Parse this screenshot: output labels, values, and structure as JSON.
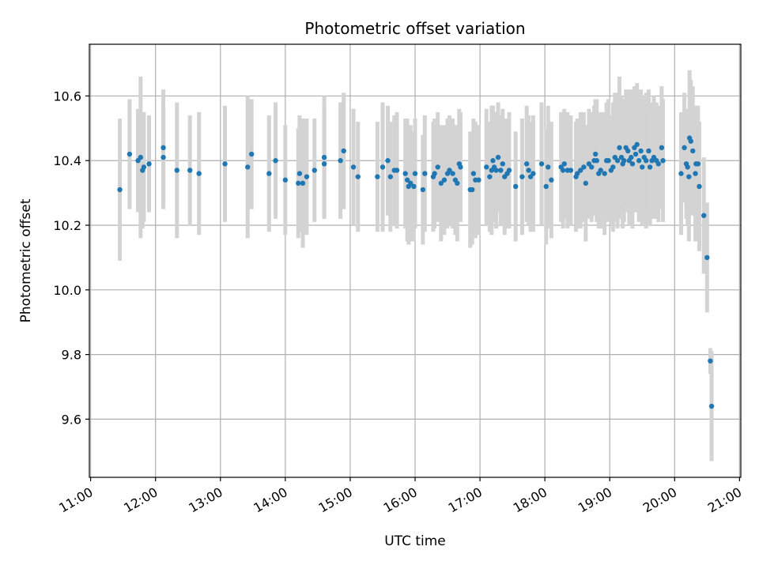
{
  "chart_data": {
    "type": "scatter",
    "title": "Photometric offset variation",
    "xlabel": "UTC time",
    "ylabel": "Photometric offset",
    "grid": true,
    "xlim": [
      10.98,
      21.02
    ],
    "ylim": [
      9.42,
      10.76
    ],
    "x_ticks": [
      "11:00",
      "12:00",
      "13:00",
      "14:00",
      "15:00",
      "16:00",
      "17:00",
      "18:00",
      "19:00",
      "20:00",
      "21:00"
    ],
    "y_ticks": [
      "9.6",
      "9.8",
      "10.0",
      "10.2",
      "10.4",
      "10.6"
    ],
    "colors": {
      "point": "#1f77b4",
      "errorbar": "#d3d3d3",
      "grid": "#b0b0b0"
    },
    "series": [
      {
        "values": [
          [
            11.45,
            10.31,
            0.22
          ],
          [
            11.6,
            10.42,
            0.17
          ],
          [
            11.73,
            10.4,
            0.16
          ],
          [
            11.77,
            10.41,
            0.25
          ],
          [
            11.8,
            10.37,
            0.18
          ],
          [
            11.82,
            10.38,
            0.17
          ],
          [
            11.9,
            10.39,
            0.15
          ],
          [
            12.12,
            10.41,
            0.16
          ],
          [
            12.12,
            10.44,
            0.18
          ],
          [
            12.33,
            10.37,
            0.21
          ],
          [
            12.53,
            10.37,
            0.17
          ],
          [
            12.67,
            10.36,
            0.19
          ],
          [
            13.07,
            10.39,
            0.18
          ],
          [
            13.42,
            10.38,
            0.22
          ],
          [
            13.48,
            10.42,
            0.17
          ],
          [
            13.75,
            10.36,
            0.18
          ],
          [
            13.85,
            10.4,
            0.18
          ],
          [
            14.0,
            10.34,
            0.17
          ],
          [
            14.2,
            10.33,
            0.17
          ],
          [
            14.22,
            10.36,
            0.18
          ],
          [
            14.27,
            10.33,
            0.2
          ],
          [
            14.33,
            10.35,
            0.18
          ],
          [
            14.45,
            10.37,
            0.16
          ],
          [
            14.6,
            10.39,
            0.17
          ],
          [
            14.6,
            10.41,
            0.19
          ],
          [
            14.85,
            10.4,
            0.18
          ],
          [
            14.9,
            10.43,
            0.18
          ],
          [
            15.05,
            10.38,
            0.18
          ],
          [
            15.12,
            10.35,
            0.17
          ],
          [
            15.42,
            10.35,
            0.17
          ],
          [
            15.5,
            10.38,
            0.2
          ],
          [
            15.58,
            10.4,
            0.17
          ],
          [
            15.62,
            10.35,
            0.17
          ],
          [
            15.68,
            10.37,
            0.17
          ],
          [
            15.72,
            10.37,
            0.18
          ],
          [
            15.85,
            10.36,
            0.17
          ],
          [
            15.88,
            10.34,
            0.19
          ],
          [
            15.9,
            10.32,
            0.18
          ],
          [
            15.93,
            10.33,
            0.18
          ],
          [
            15.98,
            10.32,
            0.17
          ],
          [
            16.0,
            10.36,
            0.17
          ],
          [
            16.12,
            10.31,
            0.17
          ],
          [
            16.15,
            10.36,
            0.18
          ],
          [
            16.28,
            10.35,
            0.17
          ],
          [
            16.3,
            10.36,
            0.17
          ],
          [
            16.35,
            10.38,
            0.17
          ],
          [
            16.4,
            10.33,
            0.18
          ],
          [
            16.45,
            10.34,
            0.17
          ],
          [
            16.5,
            10.36,
            0.17
          ],
          [
            16.53,
            10.37,
            0.17
          ],
          [
            16.58,
            10.36,
            0.17
          ],
          [
            16.62,
            10.34,
            0.17
          ],
          [
            16.65,
            10.33,
            0.18
          ],
          [
            16.68,
            10.39,
            0.17
          ],
          [
            16.7,
            10.38,
            0.17
          ],
          [
            16.85,
            10.31,
            0.18
          ],
          [
            16.88,
            10.31,
            0.17
          ],
          [
            16.9,
            10.36,
            0.17
          ],
          [
            16.93,
            10.34,
            0.18
          ],
          [
            16.98,
            10.34,
            0.17
          ],
          [
            17.1,
            10.38,
            0.18
          ],
          [
            17.15,
            10.35,
            0.17
          ],
          [
            17.18,
            10.37,
            0.2
          ],
          [
            17.2,
            10.4,
            0.17
          ],
          [
            17.22,
            10.38,
            0.17
          ],
          [
            17.25,
            10.37,
            0.18
          ],
          [
            17.28,
            10.41,
            0.17
          ],
          [
            17.32,
            10.37,
            0.17
          ],
          [
            17.35,
            10.39,
            0.17
          ],
          [
            17.38,
            10.35,
            0.18
          ],
          [
            17.42,
            10.36,
            0.17
          ],
          [
            17.45,
            10.37,
            0.18
          ],
          [
            17.55,
            10.32,
            0.17
          ],
          [
            17.65,
            10.35,
            0.18
          ],
          [
            17.72,
            10.39,
            0.18
          ],
          [
            17.75,
            10.37,
            0.17
          ],
          [
            17.78,
            10.35,
            0.17
          ],
          [
            17.82,
            10.36,
            0.18
          ],
          [
            17.95,
            10.39,
            0.19
          ],
          [
            18.02,
            10.32,
            0.18
          ],
          [
            18.05,
            10.38,
            0.19
          ],
          [
            18.1,
            10.34,
            0.18
          ],
          [
            18.25,
            10.38,
            0.17
          ],
          [
            18.28,
            10.37,
            0.18
          ],
          [
            18.3,
            10.39,
            0.17
          ],
          [
            18.35,
            10.37,
            0.18
          ],
          [
            18.4,
            10.37,
            0.17
          ],
          [
            18.48,
            10.35,
            0.17
          ],
          [
            18.5,
            10.36,
            0.17
          ],
          [
            18.55,
            10.37,
            0.18
          ],
          [
            18.6,
            10.38,
            0.17
          ],
          [
            18.63,
            10.33,
            0.18
          ],
          [
            18.68,
            10.39,
            0.17
          ],
          [
            18.72,
            10.38,
            0.17
          ],
          [
            18.76,
            10.4,
            0.17
          ],
          [
            18.78,
            10.42,
            0.17
          ],
          [
            18.8,
            10.4,
            0.19
          ],
          [
            18.83,
            10.36,
            0.17
          ],
          [
            18.86,
            10.37,
            0.18
          ],
          [
            18.92,
            10.36,
            0.19
          ],
          [
            18.95,
            10.4,
            0.18
          ],
          [
            18.98,
            10.4,
            0.19
          ],
          [
            19.02,
            10.37,
            0.17
          ],
          [
            19.05,
            10.38,
            0.2
          ],
          [
            19.08,
            10.41,
            0.2
          ],
          [
            19.12,
            10.4,
            0.21
          ],
          [
            19.15,
            10.44,
            0.22
          ],
          [
            19.18,
            10.41,
            0.19
          ],
          [
            19.2,
            10.39,
            0.2
          ],
          [
            19.22,
            10.4,
            0.19
          ],
          [
            19.25,
            10.44,
            0.18
          ],
          [
            19.28,
            10.43,
            0.19
          ],
          [
            19.3,
            10.4,
            0.2
          ],
          [
            19.33,
            10.41,
            0.21
          ],
          [
            19.35,
            10.39,
            0.2
          ],
          [
            19.38,
            10.44,
            0.19
          ],
          [
            19.4,
            10.42,
            0.18
          ],
          [
            19.42,
            10.45,
            0.19
          ],
          [
            19.45,
            10.4,
            0.19
          ],
          [
            19.48,
            10.43,
            0.19
          ],
          [
            19.5,
            10.38,
            0.18
          ],
          [
            19.53,
            10.41,
            0.19
          ],
          [
            19.56,
            10.4,
            0.21
          ],
          [
            19.6,
            10.43,
            0.19
          ],
          [
            19.62,
            10.38,
            0.18
          ],
          [
            19.65,
            10.4,
            0.18
          ],
          [
            19.68,
            10.41,
            0.19
          ],
          [
            19.72,
            10.4,
            0.18
          ],
          [
            19.75,
            10.39,
            0.18
          ],
          [
            19.8,
            10.44,
            0.19
          ],
          [
            19.82,
            10.4,
            0.19
          ],
          [
            20.1,
            10.36,
            0.19
          ],
          [
            20.15,
            10.44,
            0.17
          ],
          [
            20.18,
            10.39,
            0.17
          ],
          [
            20.2,
            10.38,
            0.18
          ],
          [
            20.22,
            10.35,
            0.2
          ],
          [
            20.23,
            10.47,
            0.21
          ],
          [
            20.25,
            10.46,
            0.19
          ],
          [
            20.28,
            10.43,
            0.2
          ],
          [
            20.32,
            10.36,
            0.21
          ],
          [
            20.33,
            10.39,
            0.17
          ],
          [
            20.36,
            10.39,
            0.18
          ],
          [
            20.38,
            10.32,
            0.2
          ],
          [
            20.45,
            10.23,
            0.18
          ],
          [
            20.5,
            10.1,
            0.17
          ],
          [
            20.55,
            9.78,
            0.04
          ],
          [
            20.57,
            9.64,
            0.17
          ]
        ]
      }
    ]
  }
}
